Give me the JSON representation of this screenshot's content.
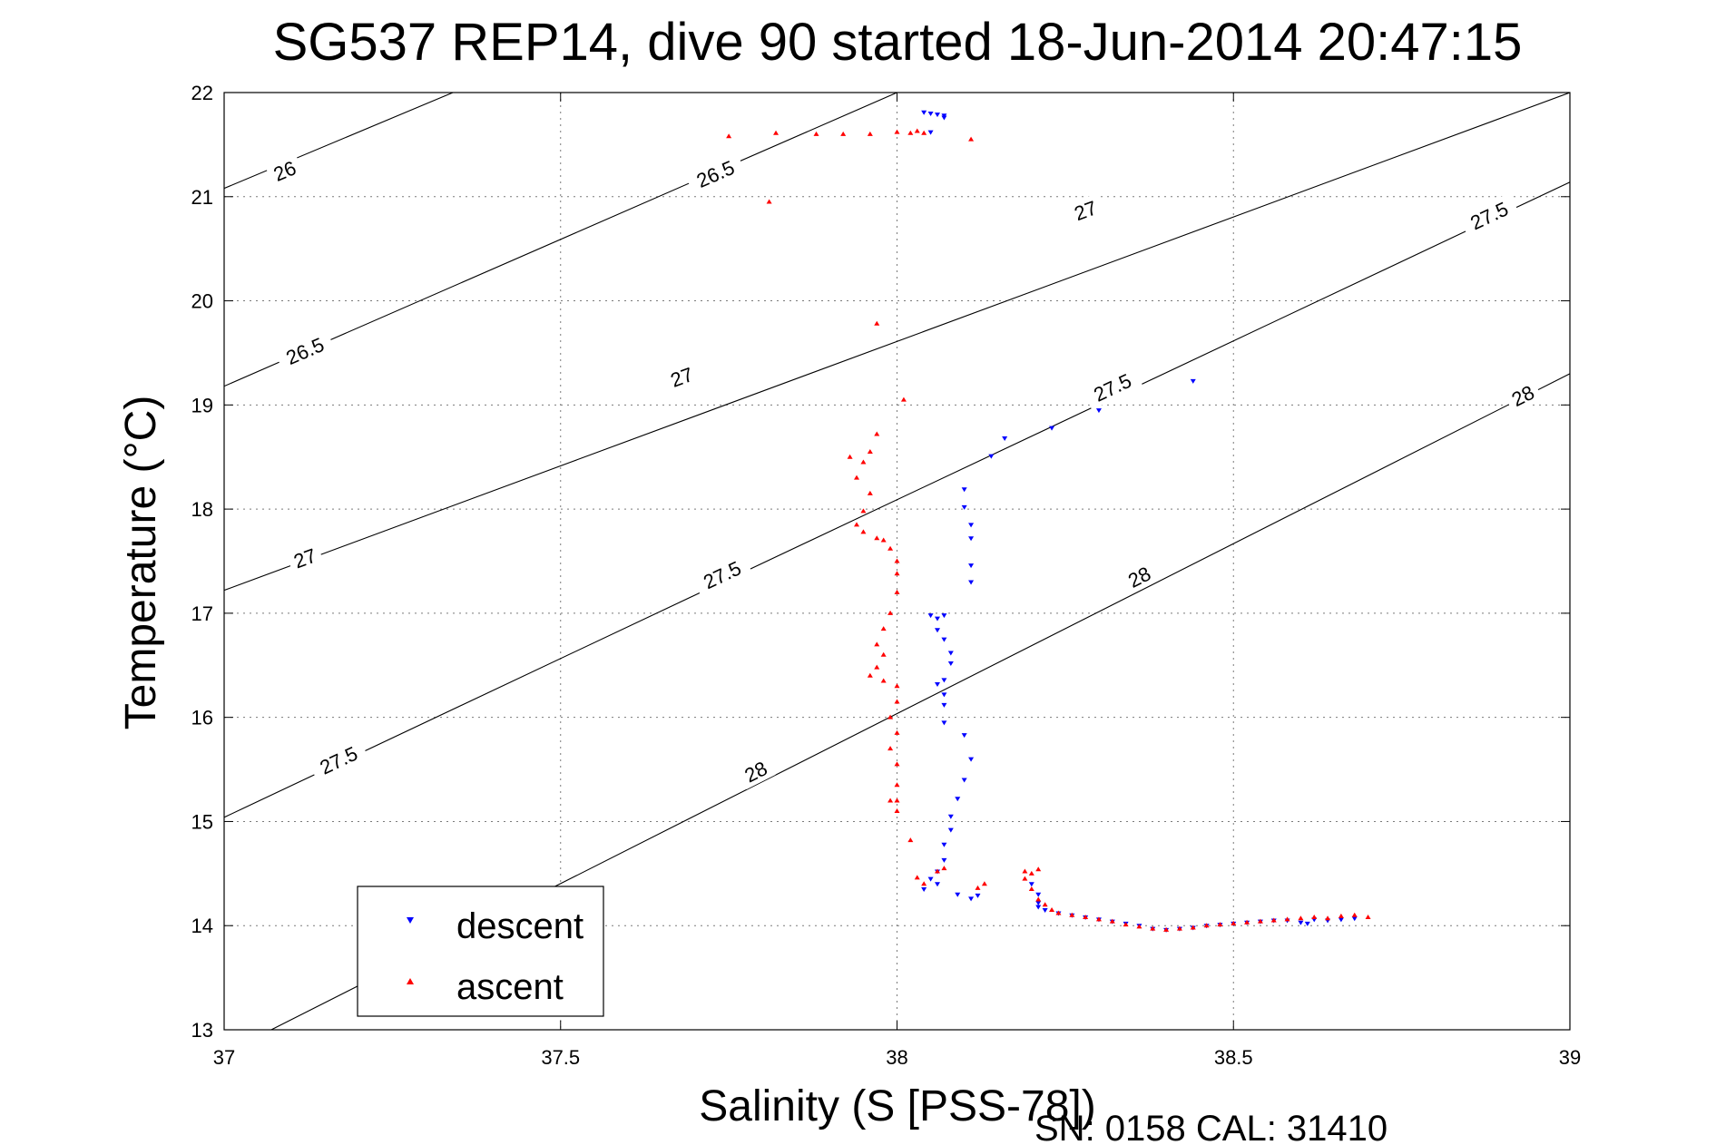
{
  "chart_data": {
    "type": "scatter",
    "title": "SG537 REP14, dive 90 started 18-Jun-2014 20:47:15",
    "xlabel": "Salinity (S [PSS-78])",
    "ylabel": "Temperature (°C)",
    "xlim": [
      37,
      39
    ],
    "ylim": [
      13,
      22
    ],
    "xticks": [
      37,
      37.5,
      38,
      38.5,
      39
    ],
    "xtick_labels": [
      "37",
      "37.5",
      "38",
      "38.5",
      "39"
    ],
    "yticks": [
      13,
      14,
      15,
      16,
      17,
      18,
      19,
      20,
      21,
      22
    ],
    "ytick_labels": [
      "13",
      "14",
      "15",
      "16",
      "17",
      "18",
      "19",
      "20",
      "21",
      "22"
    ],
    "grid": true,
    "legend_position": "bottom-left",
    "footer": "SN: 0158  CAL: 31410",
    "contours": [
      {
        "level": "26",
        "points": [
          [
            37,
            21.08
          ],
          [
            37.34,
            22.0
          ]
        ],
        "labels": [
          {
            "x": 37.09,
            "y": 21.25,
            "text": "26"
          }
        ]
      },
      {
        "level": "26.5",
        "points": [
          [
            37,
            19.18
          ],
          [
            38.0,
            22.0
          ]
        ],
        "labels": [
          {
            "x": 37.73,
            "y": 21.22,
            "text": "26.5"
          },
          {
            "x": 37.12,
            "y": 19.52,
            "text": "26.5"
          }
        ]
      },
      {
        "level": "27",
        "points": [
          [
            37,
            17.22
          ],
          [
            39,
            22.0
          ]
        ],
        "labels": [
          {
            "x": 38.28,
            "y": 20.87,
            "text": "27"
          },
          {
            "x": 37.68,
            "y": 19.27,
            "text": "27"
          },
          {
            "x": 37.12,
            "y": 17.53,
            "text": "27"
          }
        ]
      },
      {
        "level": "27.5",
        "points": [
          [
            37,
            15.04
          ],
          [
            39,
            21.14
          ]
        ],
        "labels": [
          {
            "x": 38.88,
            "y": 20.82,
            "text": "27.5"
          },
          {
            "x": 38.32,
            "y": 19.17,
            "text": "27.5"
          },
          {
            "x": 37.74,
            "y": 17.37,
            "text": "27.5"
          },
          {
            "x": 37.17,
            "y": 15.59,
            "text": "27.5"
          }
        ]
      },
      {
        "level": "28",
        "points": [
          [
            37.07,
            13.0
          ],
          [
            39,
            19.3
          ]
        ],
        "labels": [
          {
            "x": 38.93,
            "y": 19.09,
            "text": "28"
          },
          {
            "x": 38.36,
            "y": 17.35,
            "text": "28"
          },
          {
            "x": 37.79,
            "y": 15.48,
            "text": "28"
          }
        ]
      }
    ],
    "series": [
      {
        "name": "descent",
        "color": "#0000ff",
        "marker": "triangle-down",
        "points": [
          [
            38.04,
            21.81
          ],
          [
            38.05,
            21.8
          ],
          [
            38.06,
            21.79
          ],
          [
            38.07,
            21.78
          ],
          [
            38.07,
            21.76
          ],
          [
            38.05,
            21.62
          ],
          [
            38.44,
            19.23
          ],
          [
            38.3,
            18.95
          ],
          [
            38.23,
            18.78
          ],
          [
            38.16,
            18.68
          ],
          [
            38.14,
            18.51
          ],
          [
            38.1,
            18.19
          ],
          [
            38.1,
            18.02
          ],
          [
            38.11,
            17.85
          ],
          [
            38.11,
            17.72
          ],
          [
            38.11,
            17.46
          ],
          [
            38.11,
            17.3
          ],
          [
            38.05,
            16.98
          ],
          [
            38.06,
            16.95
          ],
          [
            38.07,
            16.98
          ],
          [
            38.06,
            16.84
          ],
          [
            38.07,
            16.75
          ],
          [
            38.08,
            16.62
          ],
          [
            38.08,
            16.52
          ],
          [
            38.07,
            16.36
          ],
          [
            38.07,
            16.22
          ],
          [
            38.06,
            16.32
          ],
          [
            38.07,
            16.12
          ],
          [
            38.07,
            15.95
          ],
          [
            38.1,
            15.83
          ],
          [
            38.11,
            15.6
          ],
          [
            38.1,
            15.4
          ],
          [
            38.09,
            15.22
          ],
          [
            38.08,
            15.05
          ],
          [
            38.08,
            14.92
          ],
          [
            38.07,
            14.78
          ],
          [
            38.07,
            14.63
          ],
          [
            38.06,
            14.52
          ],
          [
            38.05,
            14.45
          ],
          [
            38.06,
            14.4
          ],
          [
            38.04,
            14.35
          ],
          [
            38.09,
            14.3
          ],
          [
            38.12,
            14.29
          ],
          [
            38.11,
            14.26
          ],
          [
            38.2,
            14.4
          ],
          [
            38.21,
            14.3
          ],
          [
            38.21,
            14.22
          ],
          [
            38.21,
            14.18
          ],
          [
            38.22,
            14.15
          ],
          [
            38.24,
            14.12
          ],
          [
            38.26,
            14.1
          ],
          [
            38.28,
            14.08
          ],
          [
            38.3,
            14.06
          ],
          [
            38.32,
            14.04
          ],
          [
            38.34,
            14.02
          ],
          [
            38.36,
            14.0
          ],
          [
            38.38,
            13.97
          ],
          [
            38.4,
            13.96
          ],
          [
            38.42,
            13.97
          ],
          [
            38.44,
            13.98
          ],
          [
            38.46,
            14.0
          ],
          [
            38.48,
            14.01
          ],
          [
            38.5,
            14.02
          ],
          [
            38.52,
            14.03
          ],
          [
            38.54,
            14.04
          ],
          [
            38.56,
            14.05
          ],
          [
            38.58,
            14.05
          ],
          [
            38.6,
            14.03
          ],
          [
            38.61,
            14.02
          ],
          [
            38.62,
            14.06
          ],
          [
            38.64,
            14.05
          ],
          [
            38.66,
            14.06
          ],
          [
            38.68,
            14.07
          ]
        ]
      },
      {
        "name": "ascent",
        "color": "#ff0000",
        "marker": "triangle-up",
        "points": [
          [
            37.75,
            21.58
          ],
          [
            37.81,
            20.95
          ],
          [
            37.82,
            21.61
          ],
          [
            37.88,
            21.6
          ],
          [
            37.92,
            21.6
          ],
          [
            37.96,
            21.6
          ],
          [
            38.0,
            21.62
          ],
          [
            38.02,
            21.61
          ],
          [
            38.04,
            21.61
          ],
          [
            38.03,
            21.63
          ],
          [
            38.11,
            21.55
          ],
          [
            37.97,
            19.78
          ],
          [
            38.01,
            19.05
          ],
          [
            37.97,
            18.72
          ],
          [
            37.96,
            18.55
          ],
          [
            37.93,
            18.5
          ],
          [
            37.95,
            18.45
          ],
          [
            37.94,
            18.3
          ],
          [
            37.96,
            18.15
          ],
          [
            37.95,
            17.98
          ],
          [
            37.94,
            17.85
          ],
          [
            37.95,
            17.78
          ],
          [
            37.97,
            17.72
          ],
          [
            37.98,
            17.7
          ],
          [
            37.99,
            17.62
          ],
          [
            38.0,
            17.5
          ],
          [
            38.0,
            17.38
          ],
          [
            38.0,
            17.2
          ],
          [
            37.99,
            17.0
          ],
          [
            37.98,
            16.85
          ],
          [
            37.97,
            16.7
          ],
          [
            37.98,
            16.6
          ],
          [
            37.97,
            16.48
          ],
          [
            37.96,
            16.4
          ],
          [
            37.98,
            16.35
          ],
          [
            38.0,
            16.3
          ],
          [
            38.0,
            16.15
          ],
          [
            37.99,
            16.0
          ],
          [
            38.0,
            15.85
          ],
          [
            37.99,
            15.7
          ],
          [
            38.0,
            15.55
          ],
          [
            38.0,
            15.35
          ],
          [
            38.0,
            15.2
          ],
          [
            37.99,
            15.2
          ],
          [
            38.0,
            15.1
          ],
          [
            38.02,
            14.82
          ],
          [
            38.03,
            14.46
          ],
          [
            38.06,
            14.52
          ],
          [
            38.07,
            14.55
          ],
          [
            38.04,
            14.4
          ],
          [
            38.12,
            14.36
          ],
          [
            38.13,
            14.4
          ],
          [
            38.19,
            14.52
          ],
          [
            38.2,
            14.5
          ],
          [
            38.21,
            14.54
          ],
          [
            38.19,
            14.45
          ],
          [
            38.2,
            14.35
          ],
          [
            38.21,
            14.25
          ],
          [
            38.22,
            14.2
          ],
          [
            38.23,
            14.15
          ],
          [
            38.24,
            14.12
          ],
          [
            38.26,
            14.1
          ],
          [
            38.28,
            14.08
          ],
          [
            38.3,
            14.06
          ],
          [
            38.32,
            14.04
          ],
          [
            38.34,
            14.01
          ],
          [
            38.36,
            13.99
          ],
          [
            38.38,
            13.97
          ],
          [
            38.4,
            13.96
          ],
          [
            38.42,
            13.97
          ],
          [
            38.44,
            13.98
          ],
          [
            38.46,
            14.0
          ],
          [
            38.48,
            14.01
          ],
          [
            38.5,
            14.02
          ],
          [
            38.52,
            14.03
          ],
          [
            38.54,
            14.04
          ],
          [
            38.56,
            14.05
          ],
          [
            38.58,
            14.06
          ],
          [
            38.6,
            14.07
          ],
          [
            38.62,
            14.08
          ],
          [
            38.64,
            14.07
          ],
          [
            38.66,
            14.09
          ],
          [
            38.68,
            14.1
          ],
          [
            38.7,
            14.08
          ]
        ]
      }
    ]
  }
}
